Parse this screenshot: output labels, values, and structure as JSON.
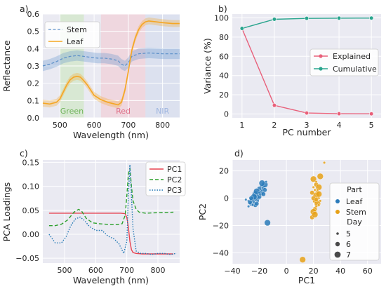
{
  "colors": {
    "stem": "#5b8fc9",
    "leaf": "#f5a623",
    "explained": "#e8607a",
    "cumulative": "#2aa58e",
    "pc1": "#e8414f",
    "pc2": "#2ca02c",
    "pc3": "#1f77b4",
    "scatter_leaf": "#2b7bba",
    "scatter_stem": "#e6a117",
    "region_green": "#c8e6b9",
    "region_red": "#f3c6cf",
    "region_nir": "#cfd8ec",
    "text": "#262626"
  },
  "chart_data": [
    {
      "panel": "a)",
      "type": "line",
      "xlabel": "Wavelength (nm)",
      "ylabel": "Reflectance",
      "xlim": [
        450,
        850
      ],
      "ylim": [
        0.0,
        0.6
      ],
      "xticks": [
        "500",
        "600",
        "700",
        "800"
      ],
      "yticks": [
        "0.0",
        "0.1",
        "0.2",
        "0.3",
        "0.4",
        "0.5",
        "0.6"
      ],
      "legend": "upper-left",
      "regions": [
        {
          "label": "Green",
          "x0": 500,
          "x1": 570
        },
        {
          "label": "Red",
          "x0": 620,
          "x1": 750
        },
        {
          "label": "NIR",
          "x0": 750,
          "x1": 850
        }
      ],
      "series": [
        {
          "name": "Stem",
          "style": "dashed",
          "x": [
            450,
            470,
            490,
            510,
            530,
            550,
            570,
            590,
            610,
            630,
            650,
            670,
            680,
            690,
            700,
            710,
            730,
            760,
            800,
            850
          ],
          "y": [
            0.3,
            0.31,
            0.325,
            0.345,
            0.355,
            0.36,
            0.355,
            0.35,
            0.345,
            0.345,
            0.34,
            0.33,
            0.31,
            0.3,
            0.32,
            0.355,
            0.37,
            0.375,
            0.37,
            0.37
          ],
          "band": 0.03
        },
        {
          "name": "Leaf",
          "style": "solid",
          "x": [
            450,
            470,
            490,
            500,
            510,
            520,
            530,
            540,
            550,
            560,
            570,
            580,
            590,
            600,
            620,
            640,
            660,
            670,
            680,
            690,
            700,
            705,
            710,
            720,
            730,
            740,
            750,
            760,
            780,
            800,
            830,
            850
          ],
          "y": [
            0.085,
            0.08,
            0.09,
            0.11,
            0.15,
            0.19,
            0.22,
            0.235,
            0.24,
            0.235,
            0.215,
            0.19,
            0.16,
            0.13,
            0.105,
            0.09,
            0.08,
            0.075,
            0.09,
            0.16,
            0.27,
            0.33,
            0.39,
            0.46,
            0.51,
            0.54,
            0.555,
            0.56,
            0.555,
            0.55,
            0.545,
            0.545
          ],
          "band": 0.02
        }
      ]
    },
    {
      "panel": "b)",
      "type": "line",
      "xlabel": "PC number",
      "ylabel": "Variance (%)",
      "xlim": [
        0.7,
        5.3
      ],
      "ylim": [
        -4,
        104
      ],
      "xticks": [
        "1",
        "2",
        "3",
        "4",
        "5"
      ],
      "yticks": [
        "0",
        "20",
        "40",
        "60",
        "80",
        "100"
      ],
      "legend": "center-right",
      "x": [
        1,
        2,
        3,
        4,
        5
      ],
      "series": [
        {
          "name": "Explained",
          "values": [
            89,
            9,
            1,
            0.3,
            0.2
          ]
        },
        {
          "name": "Cumulative",
          "values": [
            89,
            98.5,
            99.5,
            99.7,
            99.8
          ]
        }
      ]
    },
    {
      "panel": "c)",
      "type": "line",
      "xlabel": "Wavelength (nm)",
      "ylabel": "PCA Loadings",
      "xlim": [
        430,
        870
      ],
      "ylim": [
        -0.06,
        0.155
      ],
      "xticks": [
        "500",
        "600",
        "700",
        "800"
      ],
      "yticks": [
        "−0.05",
        "0.00",
        "0.05",
        "0.10",
        "0.15"
      ],
      "legend": "upper-right",
      "series": [
        {
          "name": "PC1",
          "style": "solid",
          "x": [
            450,
            500,
            550,
            600,
            650,
            680,
            695,
            700,
            705,
            710,
            715,
            720,
            730,
            750,
            800,
            850
          ],
          "y": [
            0.044,
            0.044,
            0.044,
            0.044,
            0.044,
            0.044,
            0.043,
            0.035,
            0.015,
            -0.015,
            -0.032,
            -0.038,
            -0.04,
            -0.041,
            -0.041,
            -0.041
          ]
        },
        {
          "name": "PC2",
          "style": "dashed",
          "x": [
            450,
            470,
            490,
            510,
            530,
            545,
            555,
            570,
            590,
            610,
            630,
            650,
            670,
            685,
            695,
            700,
            705,
            710,
            715,
            720,
            730,
            740,
            760,
            800,
            850
          ],
          "y": [
            0.018,
            0.018,
            0.021,
            0.03,
            0.046,
            0.052,
            0.048,
            0.033,
            0.024,
            0.022,
            0.021,
            0.02,
            0.02,
            0.022,
            0.04,
            0.08,
            0.125,
            0.138,
            0.1,
            0.07,
            0.052,
            0.046,
            0.044,
            0.045,
            0.046
          ]
        },
        {
          "name": "PC3",
          "style": "dotted",
          "x": [
            450,
            470,
            490,
            505,
            520,
            535,
            550,
            565,
            580,
            600,
            620,
            640,
            660,
            675,
            690,
            700,
            705,
            710,
            715,
            720,
            730,
            745,
            760,
            780,
            800,
            820,
            840,
            860
          ],
          "y": [
            0.0,
            -0.018,
            -0.018,
            -0.005,
            0.018,
            0.032,
            0.036,
            0.028,
            0.016,
            0.008,
            0.008,
            -0.004,
            -0.01,
            -0.02,
            -0.04,
            -0.015,
            0.08,
            0.145,
            0.08,
            0.012,
            -0.035,
            -0.04,
            -0.04,
            -0.042,
            -0.04,
            -0.04,
            -0.042,
            -0.04
          ]
        }
      ]
    },
    {
      "panel": "d)",
      "type": "scatter",
      "xlabel": "PC1",
      "ylabel": "PC2",
      "xlim": [
        -40,
        70
      ],
      "ylim": [
        -48,
        28
      ],
      "xticks": [
        "−40",
        "−20",
        "0",
        "20",
        "40",
        "60"
      ],
      "yticks": [
        "−40",
        "−20",
        "0",
        "20"
      ],
      "legend": "right",
      "legend_titles": {
        "hue": "Part",
        "size": "Day"
      },
      "size_levels": [
        "5",
        "6",
        "7"
      ],
      "series": [
        {
          "name": "Leaf",
          "points": [
            [
              -28,
              -2,
              5
            ],
            [
              -26,
              -4,
              6
            ],
            [
              -25,
              -1,
              7
            ],
            [
              -24,
              -3,
              5
            ],
            [
              -23,
              -5,
              6
            ],
            [
              -22,
              0,
              7
            ],
            [
              -21,
              2,
              5
            ],
            [
              -20,
              1,
              6
            ],
            [
              -19,
              4,
              7
            ],
            [
              -18,
              6,
              5
            ],
            [
              -17,
              8,
              6
            ],
            [
              -16,
              10,
              7
            ],
            [
              -15,
              12,
              5
            ],
            [
              -20,
              7,
              6
            ],
            [
              -23,
              3,
              7
            ],
            [
              -25,
              -5,
              5
            ],
            [
              -27,
              -3,
              6
            ],
            [
              -22,
              5,
              7
            ],
            [
              -19,
              9,
              5
            ],
            [
              -17,
              3,
              6
            ],
            [
              -24,
              1,
              7
            ],
            [
              -21,
              -2,
              5
            ],
            [
              -26,
              0,
              6
            ],
            [
              -30,
              -1,
              5
            ],
            [
              -18,
              11,
              7
            ],
            [
              -22,
              -4,
              6
            ],
            [
              -20,
              4,
              5
            ],
            [
              -16,
              6,
              6
            ],
            [
              -14,
              -18,
              7
            ],
            [
              -28,
              -6,
              5
            ]
          ]
        },
        {
          "name": "Stem",
          "points": [
            [
              20,
              14,
              7
            ],
            [
              22,
              10,
              6
            ],
            [
              24,
              8,
              7
            ],
            [
              21,
              6,
              5
            ],
            [
              23,
              4,
              6
            ],
            [
              22,
              2,
              7
            ],
            [
              24,
              0,
              5
            ],
            [
              21,
              -2,
              6
            ],
            [
              23,
              -4,
              7
            ],
            [
              22,
              -6,
              5
            ],
            [
              21,
              -8,
              6
            ],
            [
              20,
              -10,
              7
            ],
            [
              19,
              -14,
              6
            ],
            [
              24,
              -5,
              5
            ],
            [
              22,
              12,
              5
            ],
            [
              25,
              16,
              7
            ],
            [
              21,
              -12,
              7
            ],
            [
              20,
              0,
              6
            ],
            [
              23,
              6,
              5
            ],
            [
              24,
              3,
              7
            ],
            [
              22,
              -1,
              6
            ],
            [
              20,
              8,
              5
            ],
            [
              12,
              -45,
              7
            ],
            [
              28,
              26,
              5
            ],
            [
              25,
              -2,
              5
            ],
            [
              19,
              4,
              6
            ]
          ]
        }
      ]
    }
  ]
}
